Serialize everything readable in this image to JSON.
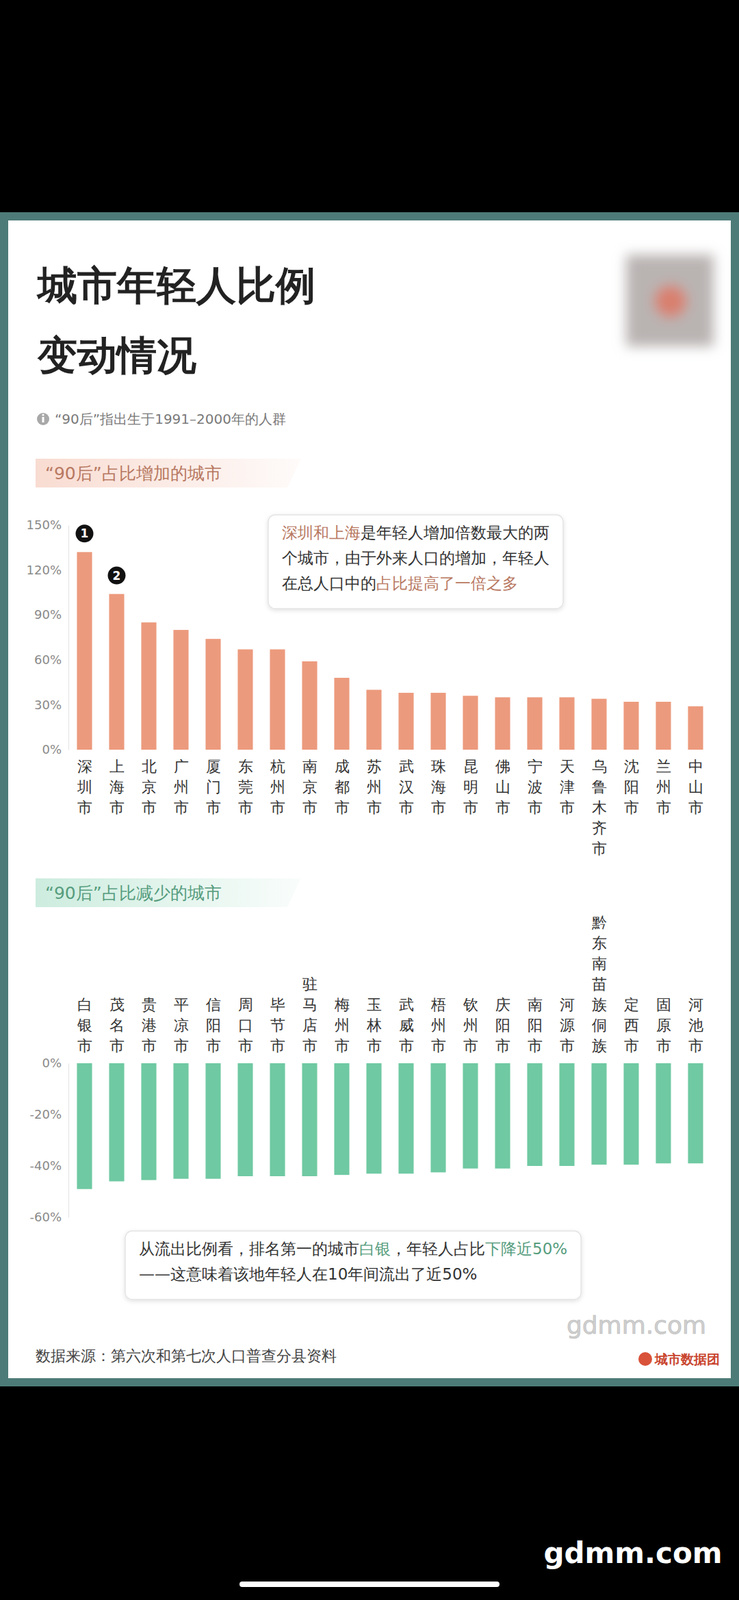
{
  "header": {
    "title_lines": [
      "城市年轻人比例",
      "变动情况"
    ],
    "note": "“90后”指出生于1991–2000年的人群"
  },
  "chart_data": [
    {
      "type": "bar",
      "title": "“90后”占比增加的城市",
      "categories": [
        "深圳市",
        "上海市",
        "北京市",
        "广州市",
        "厦门市",
        "东莞市",
        "杭州市",
        "南京市",
        "成都市",
        "苏州市",
        "武汉市",
        "珠海市",
        "昆明市",
        "佛山市",
        "宁波市",
        "天津市",
        "乌鲁木齐市",
        "沈阳市",
        "兰州市",
        "中山市"
      ],
      "values": [
        132,
        104,
        85,
        80,
        74,
        67,
        67,
        59,
        48,
        40,
        38,
        38,
        36,
        35,
        35,
        35,
        34,
        32,
        32,
        29
      ],
      "color": "#ec9a7d",
      "ylim": [
        0,
        150
      ],
      "yticks": [
        {
          "value": 0,
          "label": "0%"
        },
        {
          "value": 30,
          "label": "30%"
        },
        {
          "value": 60,
          "label": "60%"
        },
        {
          "value": 90,
          "label": "90%"
        },
        {
          "value": 120,
          "label": "120%"
        },
        {
          "value": 150,
          "label": "150%"
        }
      ],
      "grid": false,
      "rank_labels": [
        "1",
        "2"
      ],
      "annotation": [
        [
          {
            "text": "深圳和上海",
            "highlight": true
          },
          {
            "text": "是年轻人增加倍数最大的两",
            "highlight": false
          }
        ],
        [
          {
            "text": "个城市，由于外来人口的增加，年轻人",
            "highlight": false
          }
        ],
        [
          {
            "text": "在总人口中的",
            "highlight": false
          },
          {
            "text": "占比提高了一倍之多",
            "highlight": true
          }
        ]
      ]
    },
    {
      "type": "bar",
      "title": "“90后”占比减少的城市",
      "categories": [
        "白银市",
        "茂名市",
        "贵港市",
        "平凉市",
        "信阳市",
        "周口市",
        "毕节市",
        "驻马店市",
        "梅州市",
        "玉林市",
        "武威市",
        "梧州市",
        "钦州市",
        "庆阳市",
        "南阳市",
        "河源市",
        "黔东南苗族侗族",
        "定西市",
        "固原市",
        "河池市"
      ],
      "values": [
        -49,
        -46,
        -45.5,
        -45,
        -45,
        -44,
        -44,
        -44,
        -43.5,
        -43,
        -43,
        -42.5,
        -41,
        -41,
        -40,
        -40,
        -39.5,
        -39.5,
        -39,
        -39
      ],
      "color": "#6fc9a2",
      "ylim": [
        -60,
        0
      ],
      "yticks": [
        {
          "value": -60,
          "label": "-60%"
        },
        {
          "value": -40,
          "label": "-40%"
        },
        {
          "value": -20,
          "label": "-20%"
        },
        {
          "value": 0,
          "label": "0%"
        }
      ],
      "grid": false,
      "annotation": [
        [
          {
            "text": "从流出比例看，排名第一的城市",
            "highlight": false
          },
          {
            "text": "白银",
            "highlight": true
          },
          {
            "text": "，年轻人占比",
            "highlight": false
          },
          {
            "text": "下降近50%",
            "highlight": true
          }
        ],
        [
          {
            "text": "——这意味着该地年轻人在10年间流出了近50%",
            "highlight": false
          }
        ]
      ]
    }
  ],
  "footer": {
    "source": "数据来源：第六次和第七次人口普查分县资料",
    "brand": "城市数据团",
    "watermark": "gdmm.com"
  }
}
